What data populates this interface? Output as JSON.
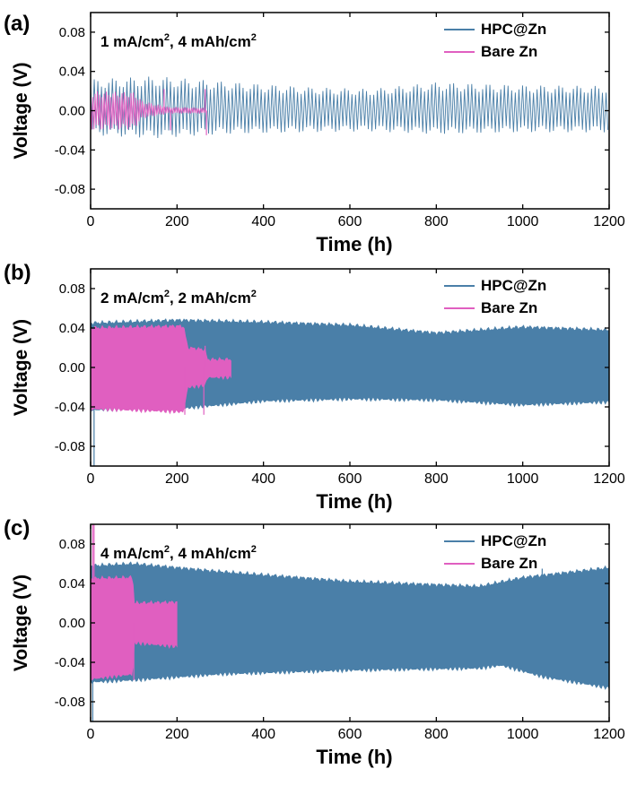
{
  "colors": {
    "hpc": "#4a7fa8",
    "bare": "#e05fc0",
    "axis": "#000000"
  },
  "chart_data": [
    {
      "type": "line",
      "panel_label": "(a)",
      "condition": {
        "base": "1 mA/cm",
        "sup1": "2",
        "mid": ", 4 mAh/cm",
        "sup2": "2"
      },
      "xlabel": "Time (h)",
      "ylabel": "Voltage (V)",
      "xlim": [
        0,
        1200
      ],
      "ylim": [
        -0.1,
        0.1
      ],
      "xticks": [
        0,
        200,
        400,
        600,
        800,
        1000,
        1200
      ],
      "yticks": [
        -0.08,
        -0.04,
        0.0,
        0.04,
        0.08
      ],
      "ytick_labels": [
        "-0.08",
        "-0.04",
        "0.00",
        "0.04",
        "0.08"
      ],
      "legend": [
        "HPC@Zn",
        "Bare Zn"
      ],
      "series": [
        {
          "name": "HPC@Zn",
          "style": "oscillation",
          "x_range": [
            0,
            1200
          ],
          "upper_envelope": [
            [
              0,
              0.032
            ],
            [
              150,
              0.035
            ],
            [
              300,
              0.03
            ],
            [
              500,
              0.024
            ],
            [
              650,
              0.022
            ],
            [
              800,
              0.029
            ],
            [
              1000,
              0.026
            ],
            [
              1200,
              0.025
            ]
          ],
          "lower_envelope": [
            [
              0,
              -0.025
            ],
            [
              150,
              -0.028
            ],
            [
              300,
              -0.024
            ],
            [
              500,
              -0.022
            ],
            [
              650,
              -0.021
            ],
            [
              800,
              -0.024
            ],
            [
              1000,
              -0.022
            ],
            [
              1200,
              -0.022
            ]
          ]
        },
        {
          "name": "Bare Zn",
          "style": "oscillation",
          "x_range": [
            0,
            270
          ],
          "upper_envelope": [
            [
              0,
              0.02
            ],
            [
              100,
              0.019
            ],
            [
              120,
              0.01
            ],
            [
              180,
              0.004
            ],
            [
              270,
              0.003
            ]
          ],
          "lower_envelope": [
            [
              0,
              -0.02
            ],
            [
              100,
              -0.019
            ],
            [
              120,
              -0.008
            ],
            [
              180,
              -0.003
            ],
            [
              270,
              -0.003
            ]
          ],
          "spikes": [
            [
              170,
              0.022
            ],
            [
              185,
              -0.02
            ],
            [
              265,
              0.022
            ],
            [
              268,
              -0.025
            ]
          ]
        }
      ]
    },
    {
      "type": "line",
      "panel_label": "(b)",
      "condition": {
        "base": "2 mA/cm",
        "sup1": "2",
        "mid": ", 2 mAh/cm",
        "sup2": "2"
      },
      "xlabel": "Time (h)",
      "ylabel": "Voltage (V)",
      "xlim": [
        0,
        1200
      ],
      "ylim": [
        -0.1,
        0.1
      ],
      "xticks": [
        0,
        200,
        400,
        600,
        800,
        1000,
        1200
      ],
      "yticks": [
        -0.08,
        -0.04,
        0.0,
        0.04,
        0.08
      ],
      "ytick_labels": [
        "-0.08",
        "-0.04",
        "0.00",
        "0.04",
        "0.08"
      ],
      "legend": [
        "HPC@Zn",
        "Bare Zn"
      ],
      "series": [
        {
          "name": "HPC@Zn",
          "style": "band",
          "x_range": [
            0,
            1200
          ],
          "upper_envelope": [
            [
              0,
              0.045
            ],
            [
              200,
              0.048
            ],
            [
              400,
              0.046
            ],
            [
              600,
              0.043
            ],
            [
              800,
              0.035
            ],
            [
              1000,
              0.041
            ],
            [
              1200,
              0.038
            ]
          ],
          "lower_envelope": [
            [
              0,
              -0.043
            ],
            [
              200,
              -0.042
            ],
            [
              400,
              -0.034
            ],
            [
              600,
              -0.032
            ],
            [
              800,
              -0.033
            ],
            [
              1000,
              -0.038
            ],
            [
              1200,
              -0.035
            ]
          ],
          "spikes": [
            [
              8,
              -0.1
            ]
          ]
        },
        {
          "name": "Bare Zn",
          "style": "band",
          "x_range": [
            0,
            325
          ],
          "upper_envelope": [
            [
              0,
              0.04
            ],
            [
              215,
              0.042
            ],
            [
              225,
              0.02
            ],
            [
              265,
              0.018
            ],
            [
              270,
              0.008
            ],
            [
              325,
              0.008
            ]
          ],
          "lower_envelope": [
            [
              0,
              -0.042
            ],
            [
              215,
              -0.045
            ],
            [
              225,
              -0.02
            ],
            [
              265,
              -0.018
            ],
            [
              270,
              -0.01
            ],
            [
              325,
              -0.01
            ]
          ],
          "spikes": [
            [
              218,
              -0.048
            ],
            [
              262,
              -0.048
            ],
            [
              265,
              0.022
            ]
          ]
        }
      ]
    },
    {
      "type": "line",
      "panel_label": "(c)",
      "condition": {
        "base": "4 mA/cm",
        "sup1": "2",
        "mid": ", 4 mAh/cm",
        "sup2": "2"
      },
      "xlabel": "Time (h)",
      "ylabel": "Voltage (V)",
      "xlim": [
        0,
        1200
      ],
      "ylim": [
        -0.1,
        0.1
      ],
      "xticks": [
        0,
        200,
        400,
        600,
        800,
        1000,
        1200
      ],
      "yticks": [
        -0.08,
        -0.04,
        0.0,
        0.04,
        0.08
      ],
      "ytick_labels": [
        "-0.08",
        "-0.04",
        "0.00",
        "0.04",
        "0.08"
      ],
      "legend": [
        "HPC@Zn",
        "Bare Zn"
      ],
      "series": [
        {
          "name": "HPC@Zn",
          "style": "band",
          "x_range": [
            0,
            1200
          ],
          "upper_envelope": [
            [
              0,
              0.058
            ],
            [
              100,
              0.06
            ],
            [
              300,
              0.052
            ],
            [
              600,
              0.042
            ],
            [
              900,
              0.037
            ],
            [
              1000,
              0.046
            ],
            [
              1200,
              0.056
            ]
          ],
          "lower_envelope": [
            [
              0,
              -0.06
            ],
            [
              100,
              -0.058
            ],
            [
              300,
              -0.052
            ],
            [
              600,
              -0.048
            ],
            [
              900,
              -0.046
            ],
            [
              950,
              -0.043
            ],
            [
              1050,
              -0.055
            ],
            [
              1200,
              -0.066
            ]
          ],
          "spikes": [
            [
              5,
              -0.1
            ],
            [
              1045,
              0.055
            ]
          ]
        },
        {
          "name": "Bare Zn",
          "style": "band",
          "x_range": [
            0,
            200
          ],
          "upper_envelope": [
            [
              0,
              0.045
            ],
            [
              98,
              0.046
            ],
            [
              100,
              0.02
            ],
            [
              200,
              0.021
            ]
          ],
          "lower_envelope": [
            [
              0,
              -0.057
            ],
            [
              98,
              -0.052
            ],
            [
              100,
              -0.02
            ],
            [
              200,
              -0.024
            ]
          ],
          "spikes": [
            [
              5,
              0.1
            ],
            [
              8,
              0.1
            ],
            [
              100,
              -0.058
            ]
          ]
        }
      ]
    }
  ]
}
